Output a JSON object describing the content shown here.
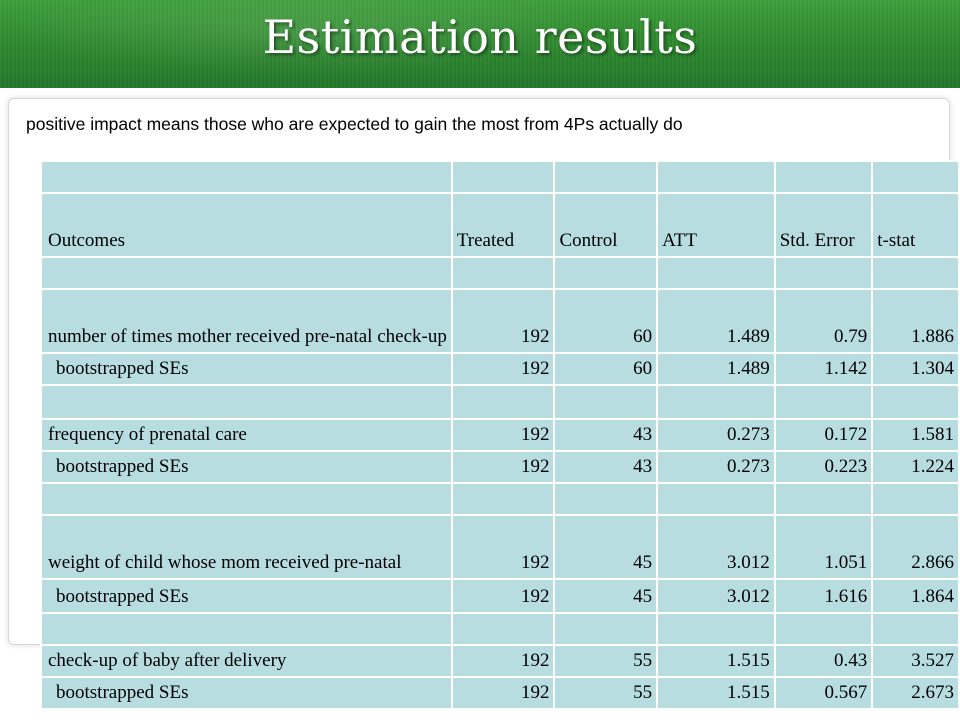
{
  "title": "Estimation results",
  "subtitle": "positive impact means those who are expected to gain the most from 4Ps actually do",
  "table": {
    "headers": {
      "outcomes": "Outcomes",
      "treated": "Treated",
      "control": "Control",
      "att": "ATT",
      "std_error": "Std. Error",
      "tstat": "t-stat"
    },
    "rows": [
      {
        "label": "number of times mother received pre-natal check-up",
        "treated": "192",
        "control": "60",
        "att": "1.489",
        "se": "0.79",
        "t": "1.886"
      },
      {
        "label": "bootstrapped SEs",
        "treated": "192",
        "control": "60",
        "att": "1.489",
        "se": "1.142",
        "t": "1.304"
      },
      {
        "label": "frequency of prenatal care",
        "treated": "192",
        "control": "43",
        "att": "0.273",
        "se": "0.172",
        "t": "1.581"
      },
      {
        "label": "bootstrapped SEs",
        "treated": "192",
        "control": "43",
        "att": "0.273",
        "se": "0.223",
        "t": "1.224"
      },
      {
        "label": "weight of child whose mom received pre-natal",
        "treated": "192",
        "control": "45",
        "att": "3.012",
        "se": "1.051",
        "t": "2.866"
      },
      {
        "label": "bootstrapped SEs",
        "treated": "192",
        "control": "45",
        "att": "3.012",
        "se": "1.616",
        "t": "1.864"
      },
      {
        "label": "check-up of baby after  delivery",
        "treated": "192",
        "control": "55",
        "att": "1.515",
        "se": "0.43",
        "t": "3.527"
      },
      {
        "label": "bootstrapped SEs",
        "treated": "192",
        "control": "55",
        "att": "1.515",
        "se": "0.567",
        "t": "2.673"
      }
    ]
  },
  "colors": {
    "header_green": "#2f8a2f",
    "table_cell": "#b7dde0"
  }
}
